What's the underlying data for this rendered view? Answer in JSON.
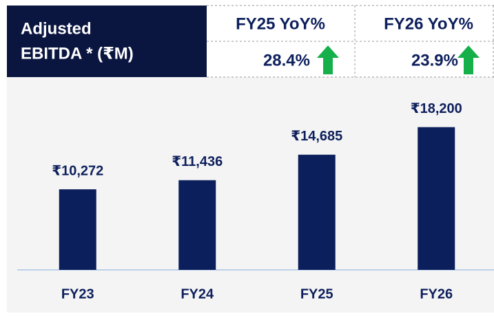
{
  "header": {
    "title_lines": [
      "Adjusted",
      "EBITDA * (₹M)"
    ],
    "columns": [
      {
        "label": "FY25 YoY%",
        "value": "28.4%"
      },
      {
        "label": "FY26 YoY%",
        "value": "23.9%"
      }
    ]
  },
  "chart_data": {
    "type": "bar",
    "categories": [
      "FY23",
      "FY24",
      "FY25",
      "FY26"
    ],
    "values": [
      10272,
      11436,
      14685,
      18200
    ],
    "value_labels": [
      "₹10,272",
      "₹11,436",
      "₹14,685",
      "₹18,200"
    ],
    "color": "#0b1f5c",
    "ylim": [
      0,
      23000
    ]
  }
}
